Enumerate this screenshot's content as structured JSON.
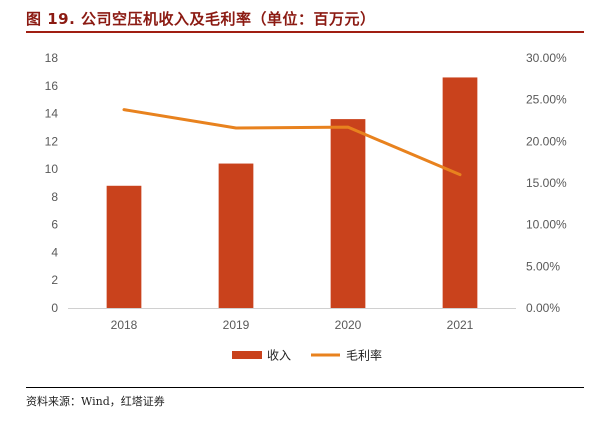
{
  "figure": {
    "title": "图 19. 公司空压机收入及毛利率（单位：百万元）",
    "source": "资料来源：Wind，红塔证券"
  },
  "colors": {
    "bar": "#c9421c",
    "line": "#e8821e",
    "title": "#8b1a12"
  },
  "chart_data": {
    "type": "bar",
    "title": "公司空压机收入及毛利率（单位：百万元）",
    "categories": [
      "2018",
      "2019",
      "2020",
      "2021"
    ],
    "series": [
      {
        "name": "收入",
        "type": "bar",
        "axis": "left",
        "values": [
          8.8,
          10.4,
          13.6,
          16.6
        ]
      },
      {
        "name": "毛利率",
        "type": "line",
        "axis": "right",
        "values": [
          0.238,
          0.216,
          0.217,
          0.16
        ]
      }
    ],
    "ylim": [
      0,
      18
    ],
    "yticks": [
      "0",
      "2",
      "4",
      "6",
      "8",
      "10",
      "12",
      "14",
      "16",
      "18"
    ],
    "y2lim": [
      0,
      0.3
    ],
    "y2ticks": [
      "0.00%",
      "5.00%",
      "10.00%",
      "15.00%",
      "20.00%",
      "25.00%",
      "30.00%"
    ],
    "grid": false,
    "legend": "bottom-center"
  }
}
